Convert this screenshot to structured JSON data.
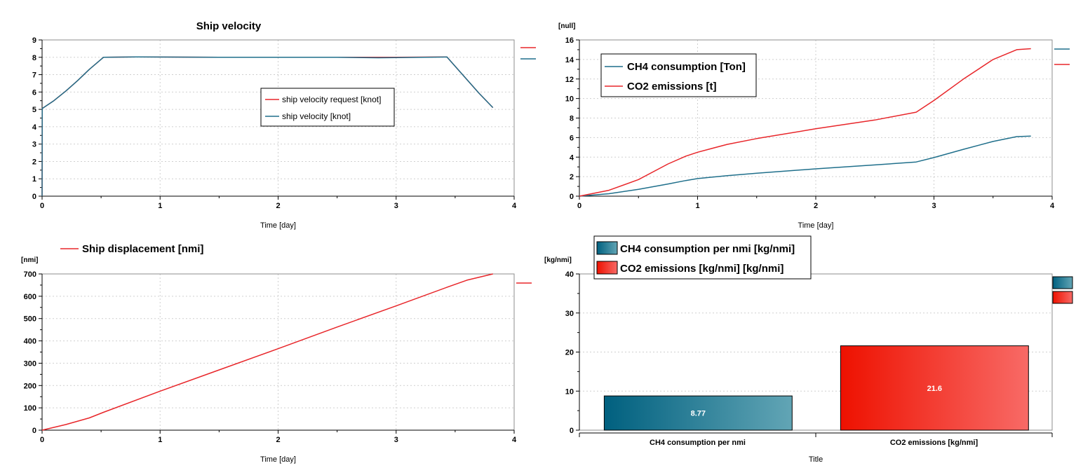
{
  "colors": {
    "red": "#e8262a",
    "teal": "#1f6f8b",
    "teal_dark": "#00607f",
    "teal_light": "#62a5b5",
    "red_dark": "#ee1100",
    "red_light": "#f86a66"
  },
  "chart_data": [
    {
      "id": "velocity",
      "type": "line",
      "title": "Ship velocity",
      "xlabel": "Time [day]",
      "ylabel": "",
      "xlim": [
        0,
        4
      ],
      "ylim": [
        0,
        9
      ],
      "xticks": [
        0,
        1,
        2,
        3,
        4
      ],
      "yticks": [
        0,
        1,
        2,
        3,
        4,
        5,
        6,
        7,
        8,
        9
      ],
      "grid": true,
      "legend_placement": "center",
      "series": [
        {
          "name": "ship velocity request [knot]",
          "color": "#e8262a",
          "x": [
            0,
            0.001,
            0.1,
            0.2,
            0.3,
            0.4,
            0.52,
            0.8,
            1.5,
            2.5,
            3.0,
            3.43,
            3.55,
            3.7,
            3.82
          ],
          "y": [
            0,
            5.05,
            5.5,
            6.05,
            6.65,
            7.3,
            8.0,
            8.02,
            8.0,
            8.0,
            8.0,
            8.02,
            7.1,
            5.95,
            5.1
          ]
        },
        {
          "name": "ship velocity [knot]",
          "color": "#1f6f8b",
          "x": [
            0,
            0.001,
            0.1,
            0.2,
            0.3,
            0.4,
            0.52,
            0.8,
            1.5,
            2.5,
            2.85,
            3.0,
            3.43,
            3.55,
            3.7,
            3.82
          ],
          "y": [
            0,
            5.05,
            5.5,
            6.05,
            6.65,
            7.3,
            8.0,
            8.02,
            8.0,
            8.0,
            7.97,
            7.98,
            8.02,
            7.1,
            5.95,
            5.1
          ]
        }
      ]
    },
    {
      "id": "consumption",
      "type": "line",
      "title": "",
      "unit_label": "[null]",
      "xlabel": "Time [day]",
      "ylabel": "",
      "xlim": [
        0,
        4
      ],
      "ylim": [
        0,
        16
      ],
      "xticks": [
        0,
        1,
        2,
        3,
        4
      ],
      "yticks": [
        0,
        2,
        4,
        6,
        8,
        10,
        12,
        14,
        16
      ],
      "grid": true,
      "legend_placement": "top-left",
      "series": [
        {
          "name": "CH4 consumption [Ton]",
          "color": "#1f6f8b",
          "x": [
            0,
            0.25,
            0.5,
            0.75,
            0.9,
            1.0,
            1.25,
            1.5,
            2.0,
            2.5,
            2.85,
            3.0,
            3.25,
            3.5,
            3.7,
            3.82
          ],
          "y": [
            0,
            0.25,
            0.7,
            1.25,
            1.6,
            1.8,
            2.1,
            2.35,
            2.8,
            3.2,
            3.5,
            3.95,
            4.8,
            5.6,
            6.1,
            6.15
          ]
        },
        {
          "name": "CO2 emissions [t]",
          "color": "#e8262a",
          "x": [
            0,
            0.25,
            0.5,
            0.75,
            0.9,
            1.0,
            1.25,
            1.5,
            2.0,
            2.5,
            2.85,
            3.0,
            3.25,
            3.5,
            3.7,
            3.82
          ],
          "y": [
            0,
            0.6,
            1.7,
            3.3,
            4.1,
            4.5,
            5.3,
            5.9,
            6.9,
            7.8,
            8.6,
            9.8,
            12.0,
            14.0,
            15.0,
            15.1
          ]
        }
      ]
    },
    {
      "id": "displacement",
      "type": "line",
      "title": "",
      "unit_label": "[nmi]",
      "xlabel": "Time [day]",
      "ylabel": "",
      "xlim": [
        0,
        4
      ],
      "ylim": [
        0,
        700
      ],
      "xticks": [
        0,
        1,
        2,
        3,
        4
      ],
      "yticks": [
        0,
        100,
        200,
        300,
        400,
        500,
        600,
        700
      ],
      "grid": true,
      "legend_placement": "top-left",
      "series": [
        {
          "name": "Ship displacement [nmi]",
          "color": "#e8262a",
          "x": [
            0,
            0.2,
            0.4,
            0.52,
            1.0,
            1.5,
            2.0,
            2.5,
            3.0,
            3.43,
            3.6,
            3.82
          ],
          "y": [
            0,
            25,
            55,
            80,
            175,
            270,
            365,
            462,
            557,
            640,
            672,
            700
          ]
        }
      ]
    },
    {
      "id": "per_nmi",
      "type": "bar",
      "title": "",
      "unit_label": "[kg/nmi]",
      "xlabel": "Title",
      "ylabel": "",
      "ylim": [
        0,
        40
      ],
      "yticks": [
        0,
        10,
        20,
        30,
        40
      ],
      "grid": true,
      "legend_placement": "top-left",
      "categories": [
        "CH4 consumption per nmi",
        "CO2 emissions [kg/nmi]"
      ],
      "values": [
        8.77,
        21.6
      ],
      "value_labels": [
        "8.77",
        "21.6"
      ],
      "legend": [
        "CH4 consumption per nmi [kg/nmi]",
        "CO2 emissions [kg/nmi] [kg/nmi]"
      ]
    }
  ]
}
